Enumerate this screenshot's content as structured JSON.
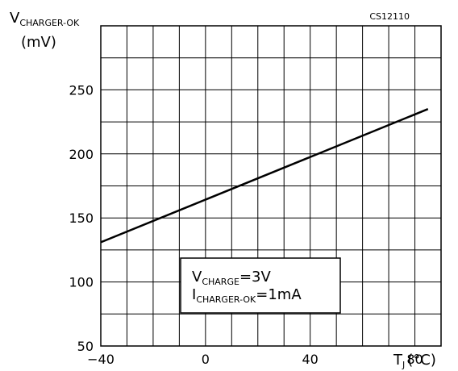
{
  "chart_data": {
    "type": "line",
    "figure_id": "CS12110",
    "ylabel": {
      "main": "V",
      "sub": "CHARGER-OK",
      "unit": "(mV)"
    },
    "xlabel": {
      "main": "T",
      "sub": "J",
      "unit": "(°C)"
    },
    "xlim": [
      -40,
      90
    ],
    "ylim": [
      50,
      300
    ],
    "x_ticks": [
      -40,
      0,
      40,
      80
    ],
    "x_tick_labels": [
      "−40",
      "0",
      "40",
      "80"
    ],
    "y_ticks": [
      50,
      100,
      150,
      200,
      250
    ],
    "y_tick_labels": [
      "50",
      "100",
      "150",
      "200",
      "250"
    ],
    "grid": true,
    "x_grid_step": 10,
    "y_grid_step": 25,
    "series": [
      {
        "x": [
          -40,
          85
        ],
        "y": [
          131,
          235
        ]
      }
    ],
    "annotation": {
      "line1": {
        "main": "V",
        "sub": "CHARGE",
        "value": "=3V"
      },
      "line2": {
        "main": "I",
        "sub": "CHARGER-OK",
        "value": "=1mA"
      }
    },
    "colors": {
      "line": "#000000",
      "grid": "#000000",
      "background": "#ffffff"
    }
  }
}
